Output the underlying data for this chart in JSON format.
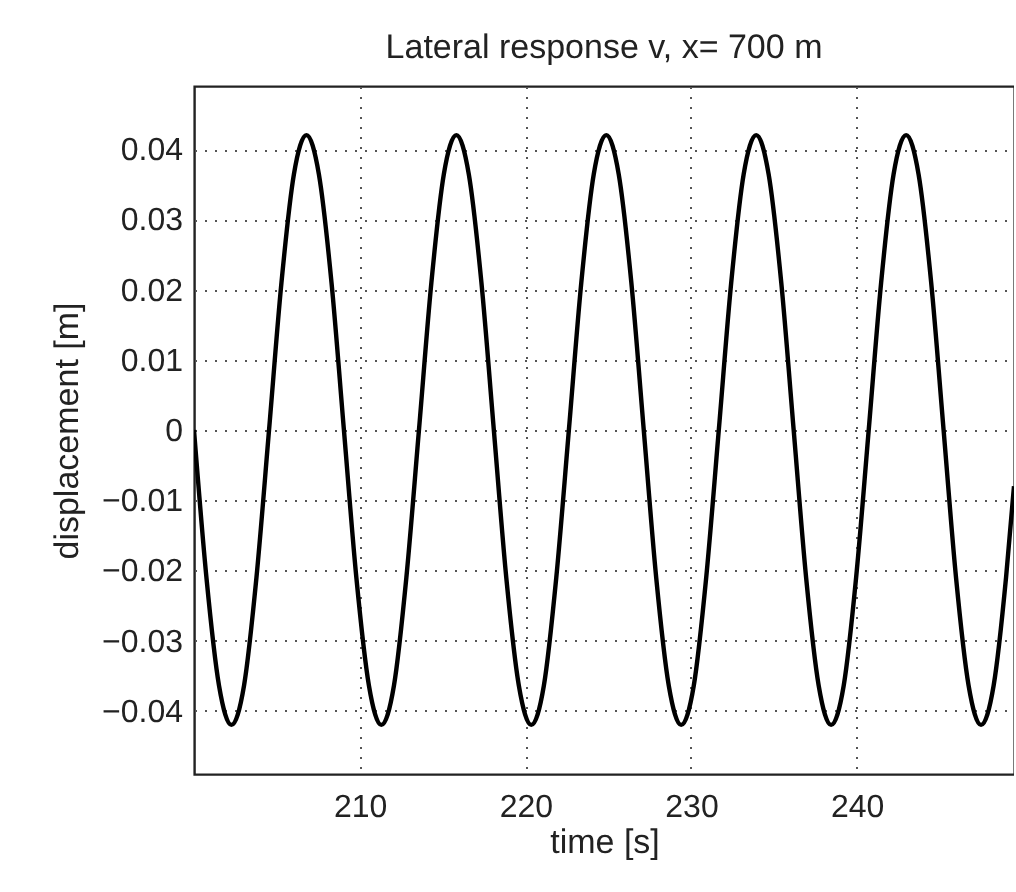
{
  "chart_data": {
    "type": "line",
    "title": "Lateral response v, x= 700 m",
    "xlabel": "time [s]",
    "ylabel": "displacement [m]",
    "x": [
      200.0,
      200.75,
      201.51,
      202.26,
      203.02,
      203.77,
      204.53,
      205.28,
      206.03,
      206.79,
      207.54,
      208.3,
      209.05,
      209.8,
      210.56,
      211.31,
      212.07,
      212.82,
      213.58,
      214.33,
      215.08,
      215.84,
      216.59,
      217.35,
      218.1,
      218.85,
      219.61,
      220.36,
      221.12,
      221.87,
      222.63,
      223.38,
      224.13,
      224.89,
      225.64,
      226.4,
      227.15,
      227.9,
      228.66,
      229.41,
      230.17,
      230.92,
      231.68,
      232.43,
      233.18,
      233.94,
      234.69,
      235.45,
      236.2,
      236.95,
      237.71,
      238.46,
      239.22,
      239.97,
      240.73,
      241.48,
      242.23,
      242.99,
      243.74,
      244.5,
      245.25,
      246.0,
      246.76,
      247.51,
      248.27,
      249.02,
      249.5
    ],
    "series": [
      {
        "color": "#000000",
        "values": [
          0,
          -0.021,
          -0.0364,
          -0.042,
          -0.0364,
          -0.021,
          0,
          0.021,
          0.0364,
          0.042,
          0.0364,
          0.021,
          0,
          -0.021,
          -0.0364,
          -0.042,
          -0.0364,
          -0.021,
          0,
          0.021,
          0.0364,
          0.042,
          0.0364,
          0.021,
          0,
          -0.021,
          -0.0364,
          -0.042,
          -0.0364,
          -0.021,
          0,
          0.021,
          0.0364,
          0.042,
          0.0364,
          0.021,
          0,
          -0.021,
          -0.0364,
          -0.042,
          -0.0364,
          -0.021,
          0,
          0.021,
          0.0364,
          0.042,
          0.0364,
          0.021,
          0,
          -0.021,
          -0.0364,
          -0.042,
          -0.0364,
          -0.021,
          0,
          0.021,
          0.0364,
          0.042,
          0.0364,
          0.021,
          0,
          -0.021,
          -0.0364,
          -0.042,
          -0.0364,
          -0.021,
          -0.008
        ]
      }
    ],
    "xlim": [
      200,
      249.5
    ],
    "xticks": [
      210,
      220,
      230,
      240
    ],
    "ylim": [
      -0.049,
      0.049
    ],
    "yticks": [
      -0.04,
      -0.03,
      -0.02,
      -0.01,
      0,
      0.01,
      0.02,
      0.03,
      0.04
    ],
    "grid": true,
    "line_style": "solid",
    "marker": "none"
  }
}
